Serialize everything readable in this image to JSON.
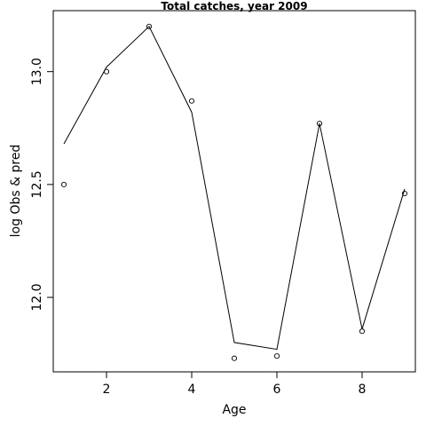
{
  "chart_data": {
    "type": "line",
    "title": "Total catches, year 2009",
    "xlabel": "Age",
    "ylabel": "log Obs & pred",
    "xlim": [
      0.75,
      9.25
    ],
    "ylim": [
      11.67,
      13.27
    ],
    "x_ticks": [
      2,
      4,
      6,
      8
    ],
    "y_ticks": [
      12.0,
      12.5,
      13.0
    ],
    "x_tick_labels": [
      "2",
      "4",
      "6",
      "8"
    ],
    "y_tick_labels": [
      "12.0",
      "12.5",
      "13.0"
    ],
    "grid": false,
    "x": [
      1,
      2,
      3,
      4,
      5,
      6,
      7,
      8,
      9
    ],
    "series": [
      {
        "style": "points",
        "values": [
          12.5,
          13.0,
          13.2,
          12.87,
          11.73,
          11.74,
          12.77,
          11.85,
          12.46
        ]
      },
      {
        "style": "line",
        "values": [
          12.68,
          13.02,
          13.2,
          12.82,
          11.8,
          11.77,
          12.77,
          11.86,
          12.48
        ]
      }
    ]
  }
}
